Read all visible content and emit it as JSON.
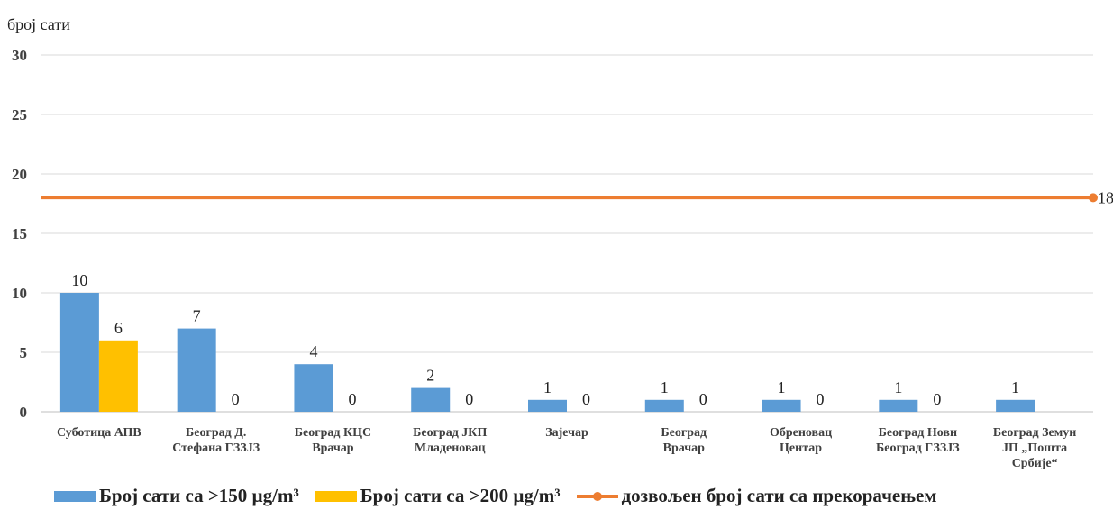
{
  "chart_data": {
    "type": "bar",
    "ylabel": "број сати",
    "ylim": [
      0,
      30
    ],
    "yticks": [
      0,
      5,
      10,
      15,
      20,
      25,
      30
    ],
    "grid": true,
    "legend_position": "bottom",
    "categories": [
      [
        "Суботица АПВ"
      ],
      [
        "Београд Д.",
        "Стефана ГЗЗЈЗ"
      ],
      [
        "Београд КЦС",
        "Врачар"
      ],
      [
        "Београд ЈКП",
        "Младеновац"
      ],
      [
        "Зајечар"
      ],
      [
        "Београд",
        "Врачар"
      ],
      [
        "Обреновац",
        "Центар"
      ],
      [
        "Београд Нови",
        "Београд ГЗЗЈЗ"
      ],
      [
        "Београд Земун",
        "ЈП „Пошта",
        "Србије“"
      ]
    ],
    "series": [
      {
        "name": "Број сати са >150 µg/m³",
        "type": "bar",
        "color": "#5B9BD5",
        "values": [
          10,
          7,
          4,
          2,
          1,
          1,
          1,
          1,
          1
        ]
      },
      {
        "name": "Број сати са >200 µg/m³",
        "type": "bar",
        "color": "#FFC000",
        "values": [
          6,
          0,
          0,
          0,
          0,
          0,
          0,
          0,
          null
        ]
      },
      {
        "name": "дозвољен број сати са прекорачењем",
        "type": "line",
        "color": "#ED7D31",
        "value": 18
      }
    ]
  }
}
